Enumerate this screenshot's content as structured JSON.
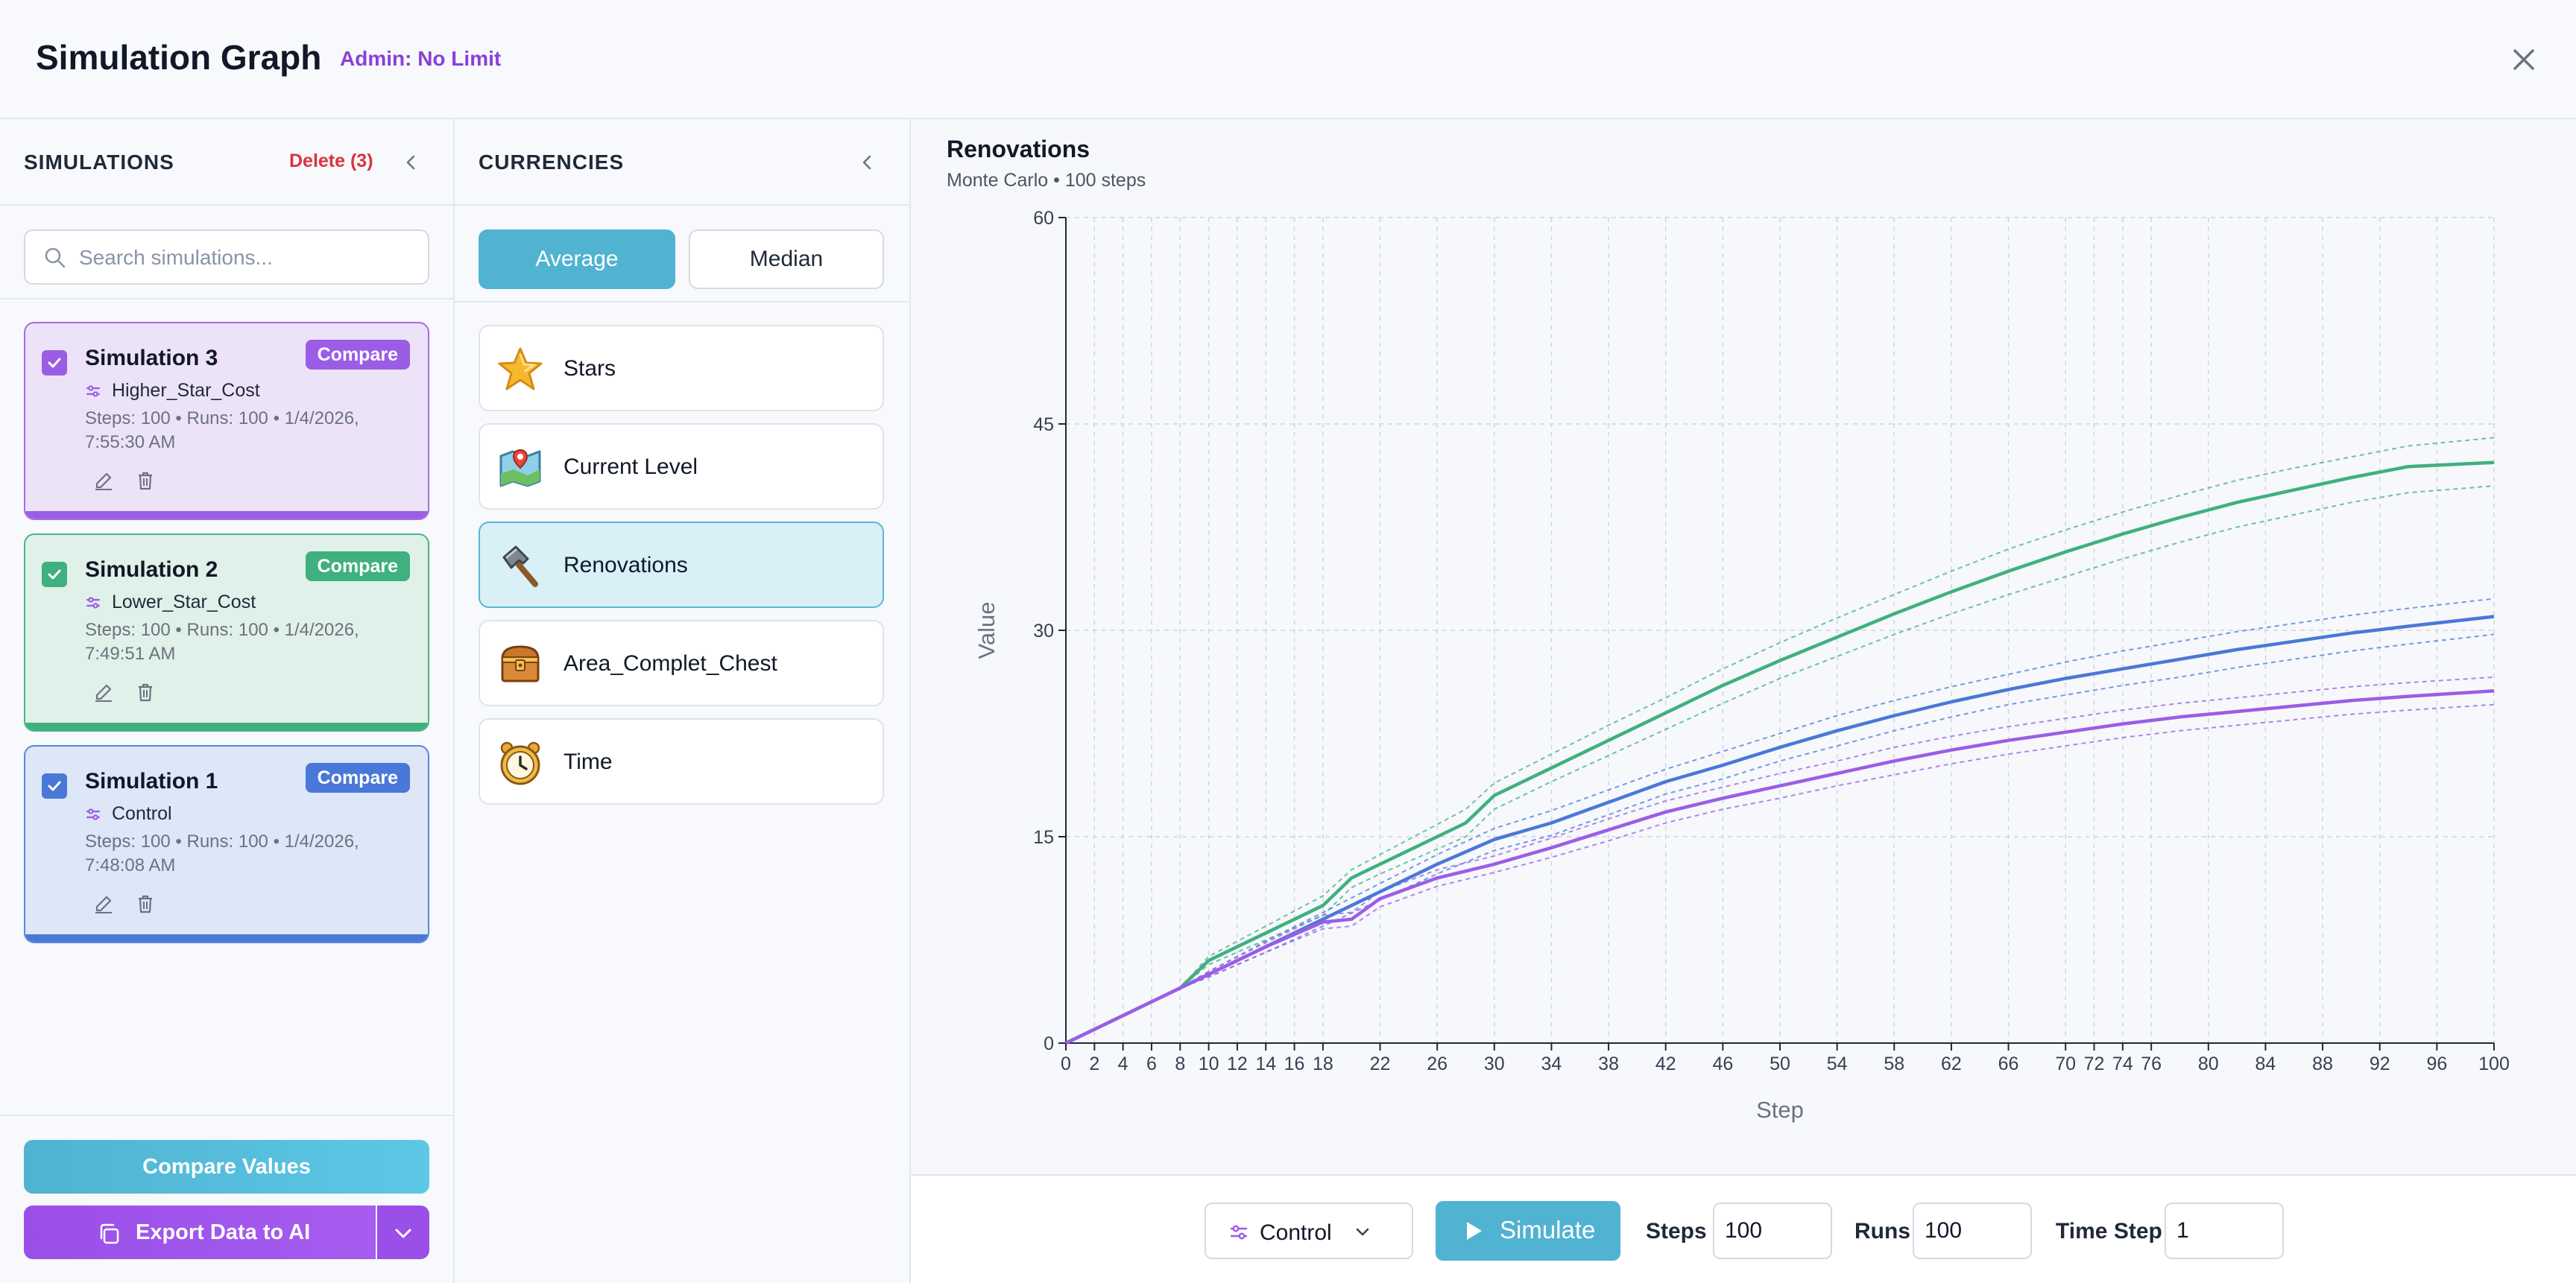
{
  "header": {
    "title": "Simulation Graph",
    "admin": "Admin: No Limit"
  },
  "simulations": {
    "title": "SIMULATIONS",
    "delete_label": "Delete (3)",
    "search_placeholder": "Search simulations...",
    "items": [
      {
        "name": "Simulation 3",
        "config": "Higher_Star_Cost",
        "meta": "Steps: 100 • Runs: 100 • 1/4/2026, 7:55:30 AM",
        "compare": "Compare",
        "color": "#9b5de5",
        "bg": "#ede3f8",
        "border": "#a66be8"
      },
      {
        "name": "Simulation 2",
        "config": "Lower_Star_Cost",
        "meta": "Steps: 100 • Runs: 100 • 1/4/2026, 7:49:51 AM",
        "compare": "Compare",
        "color": "#3fb07f",
        "bg": "#dff1e8",
        "border": "#4cb583"
      },
      {
        "name": "Simulation 1",
        "config": "Control",
        "meta": "Steps: 100 • Runs: 100 • 1/4/2026, 7:48:08 AM",
        "compare": "Compare",
        "color": "#4a78d8",
        "bg": "#dde7f8",
        "border": "#5a86dc"
      }
    ],
    "compare_values_label": "Compare Values",
    "export_label": "Export Data to AI"
  },
  "currencies": {
    "title": "CURRENCIES",
    "average_label": "Average",
    "median_label": "Median",
    "items": [
      {
        "label": "Stars",
        "icon": "star-icon"
      },
      {
        "label": "Current Level",
        "icon": "map-icon"
      },
      {
        "label": "Renovations",
        "icon": "hammer-icon"
      },
      {
        "label": "Area_Complet_Chest",
        "icon": "chest-icon"
      },
      {
        "label": "Time",
        "icon": "clock-icon"
      }
    ],
    "selected": "Renovations"
  },
  "chart_data": {
    "type": "line",
    "title": "Renovations",
    "subtitle": "Monte Carlo • 100 steps",
    "xlabel": "Step",
    "ylabel": "Value",
    "xlim": [
      0,
      100
    ],
    "ylim": [
      0,
      60
    ],
    "yticks": [
      0,
      15,
      30,
      45,
      60
    ],
    "xticks": [
      0,
      2,
      4,
      6,
      8,
      10,
      12,
      14,
      16,
      18,
      22,
      26,
      30,
      34,
      38,
      42,
      46,
      50,
      54,
      58,
      62,
      66,
      70,
      72,
      74,
      76,
      80,
      84,
      88,
      92,
      96,
      100
    ],
    "grid": true,
    "series": [
      {
        "name": "Lower_Star_Cost",
        "color": "#3fb07f",
        "x": [
          0,
          8,
          10,
          12,
          14,
          16,
          18,
          20,
          22,
          24,
          26,
          28,
          30,
          34,
          38,
          42,
          46,
          50,
          54,
          58,
          62,
          66,
          70,
          74,
          78,
          82,
          86,
          90,
          94,
          100
        ],
        "y": [
          0,
          4,
          6,
          7,
          8,
          9,
          10,
          12,
          13,
          14,
          15,
          16,
          18,
          20,
          22,
          24,
          26,
          27.8,
          29.5,
          31.2,
          32.8,
          34.3,
          35.7,
          37,
          38.2,
          39.3,
          40.2,
          41.1,
          41.9,
          42.2
        ],
        "upper": [
          0,
          4,
          6.3,
          7.4,
          8.5,
          9.6,
          10.7,
          12.6,
          13.7,
          14.8,
          15.9,
          17,
          18.9,
          21,
          23.1,
          25.1,
          27.2,
          29.1,
          30.9,
          32.6,
          34.3,
          35.9,
          37.3,
          38.6,
          39.8,
          40.9,
          41.8,
          42.6,
          43.4,
          44
        ],
        "lower": [
          0,
          4,
          5.7,
          6.6,
          7.5,
          8.4,
          9.3,
          11.3,
          12.3,
          13.2,
          14.1,
          15,
          17,
          19,
          20.9,
          22.8,
          24.7,
          26.5,
          28.1,
          29.7,
          31.2,
          32.6,
          33.9,
          35.2,
          36.4,
          37.5,
          38.4,
          39.3,
          40,
          40.5
        ]
      },
      {
        "name": "Control",
        "color": "#4a78d8",
        "x": [
          0,
          8,
          10,
          14,
          18,
          22,
          26,
          30,
          34,
          38,
          42,
          46,
          50,
          54,
          58,
          62,
          66,
          70,
          74,
          78,
          82,
          86,
          90,
          94,
          100
        ],
        "y": [
          0,
          4,
          5,
          7,
          9,
          11,
          13,
          14.8,
          16,
          17.5,
          19,
          20.2,
          21.5,
          22.7,
          23.8,
          24.8,
          25.7,
          26.5,
          27.2,
          27.9,
          28.6,
          29.2,
          29.8,
          30.3,
          31
        ],
        "upper": [
          0,
          4,
          5.2,
          7.4,
          9.5,
          11.6,
          13.7,
          15.6,
          16.9,
          18.4,
          19.9,
          21.2,
          22.5,
          23.8,
          24.9,
          25.9,
          26.8,
          27.7,
          28.5,
          29.2,
          29.9,
          30.5,
          31.1,
          31.6,
          32.3
        ],
        "lower": [
          0,
          4,
          4.8,
          6.6,
          8.5,
          10.4,
          12.3,
          14,
          15.1,
          16.6,
          18.1,
          19.2,
          20.5,
          21.6,
          22.7,
          23.7,
          24.6,
          25.3,
          26,
          26.6,
          27.3,
          27.9,
          28.5,
          29,
          29.7
        ]
      },
      {
        "name": "Higher_Star_Cost",
        "color": "#9b5de5",
        "x": [
          0,
          8,
          10,
          14,
          18,
          20,
          22,
          26,
          30,
          34,
          38,
          42,
          46,
          50,
          54,
          58,
          62,
          66,
          70,
          74,
          78,
          82,
          86,
          90,
          94,
          100
        ],
        "y": [
          0,
          4,
          5,
          7,
          8.8,
          9,
          10.5,
          12,
          13,
          14.2,
          15.5,
          16.8,
          17.8,
          18.7,
          19.6,
          20.5,
          21.3,
          22,
          22.6,
          23.2,
          23.7,
          24.1,
          24.5,
          24.9,
          25.2,
          25.6
        ],
        "upper": [
          0,
          4,
          5.2,
          7.3,
          9.3,
          9.5,
          11,
          12.6,
          13.6,
          14.9,
          16.3,
          17.6,
          18.6,
          19.6,
          20.5,
          21.5,
          22.3,
          23,
          23.6,
          24.2,
          24.7,
          25.1,
          25.5,
          25.9,
          26.2,
          26.6
        ],
        "lower": [
          0,
          4,
          4.8,
          6.6,
          8.3,
          8.5,
          9.9,
          11.4,
          12.4,
          13.5,
          14.7,
          16,
          17,
          17.8,
          18.7,
          19.5,
          20.3,
          21,
          21.6,
          22.2,
          22.7,
          23.1,
          23.5,
          23.9,
          24.2,
          24.6
        ]
      }
    ]
  },
  "controls": {
    "config_value": "Control",
    "simulate_label": "Simulate",
    "steps_label": "Steps",
    "steps_value": "100",
    "runs_label": "Runs",
    "runs_value": "100",
    "time_step_label": "Time Step",
    "time_step_value": "1"
  }
}
